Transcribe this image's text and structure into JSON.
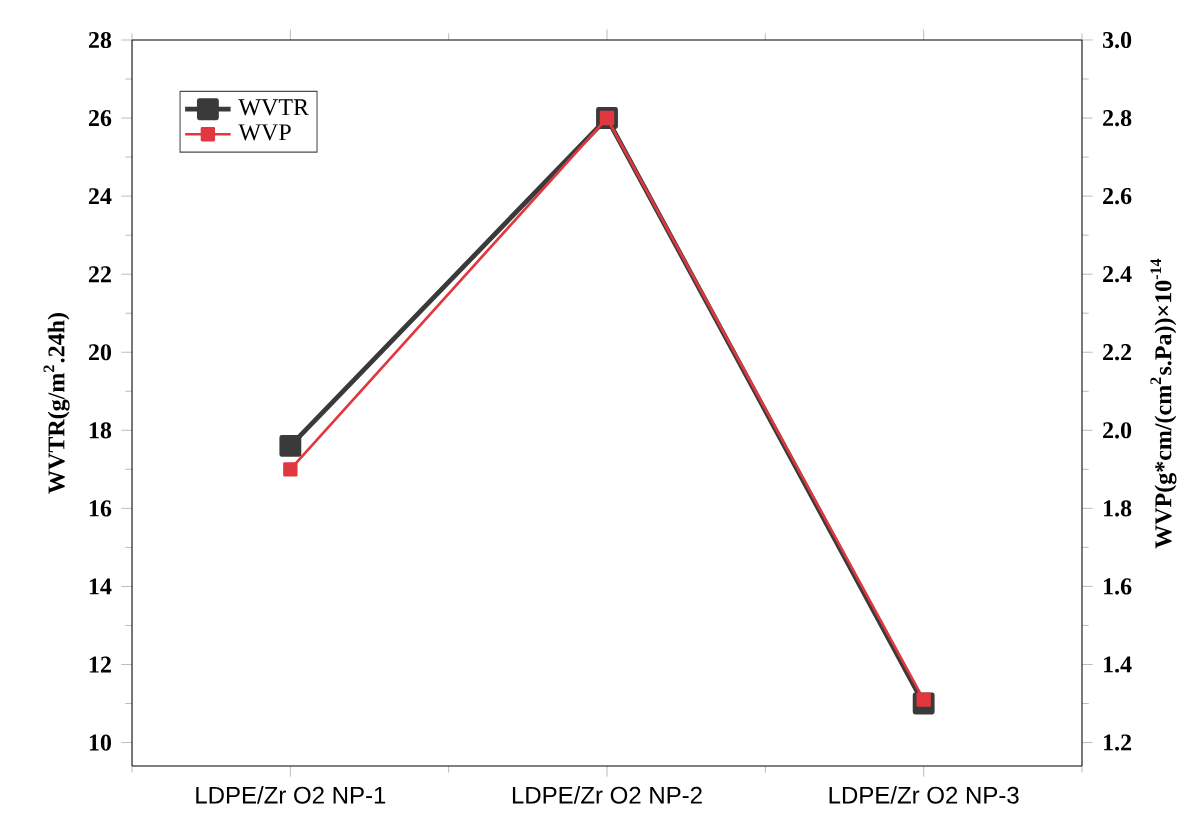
{
  "chart_data": {
    "type": "line",
    "categories": [
      "LDPE/Zr O2 NP-1",
      "LDPE/Zr O2 NP-2",
      "LDPE/Zr O2 NP-3"
    ],
    "ylabel": "WVTR(g/m$^{2}$.24h)",
    "y2label": "WVP(g*cm/(cm$^{2}$s.Pa))×10$^{-14}$",
    "ylim": [
      9.4,
      28
    ],
    "yticks": [
      10,
      12,
      14,
      16,
      18,
      20,
      22,
      24,
      26,
      28
    ],
    "y2lim": [
      1.14,
      3.0
    ],
    "y2ticks": [
      {
        "value": 1.2,
        "label": "1.2"
      },
      {
        "value": 1.4,
        "label": "1.4"
      },
      {
        "value": 1.6,
        "label": "1.6"
      },
      {
        "value": 1.8,
        "label": "1.8"
      },
      {
        "value": 2.0,
        "label": "2.0"
      },
      {
        "value": 2.2,
        "label": "2.2"
      },
      {
        "value": 2.4,
        "label": "2.4"
      },
      {
        "value": 2.6,
        "label": "2.6"
      },
      {
        "value": 2.8,
        "label": "2.8"
      },
      {
        "value": 3.0,
        "label": "3.0"
      }
    ],
    "series": [
      {
        "name": "WVTR",
        "color": "#3a3a3a",
        "values": [
          17.6,
          26.0,
          11.0
        ]
      },
      {
        "name": "WVP",
        "color": "#e0383e",
        "values": [
          1.9,
          2.8,
          1.31
        ],
        "axis": "y2"
      }
    ],
    "marker": "square",
    "line_style": "solid",
    "legend": "top left",
    "grid": false
  }
}
